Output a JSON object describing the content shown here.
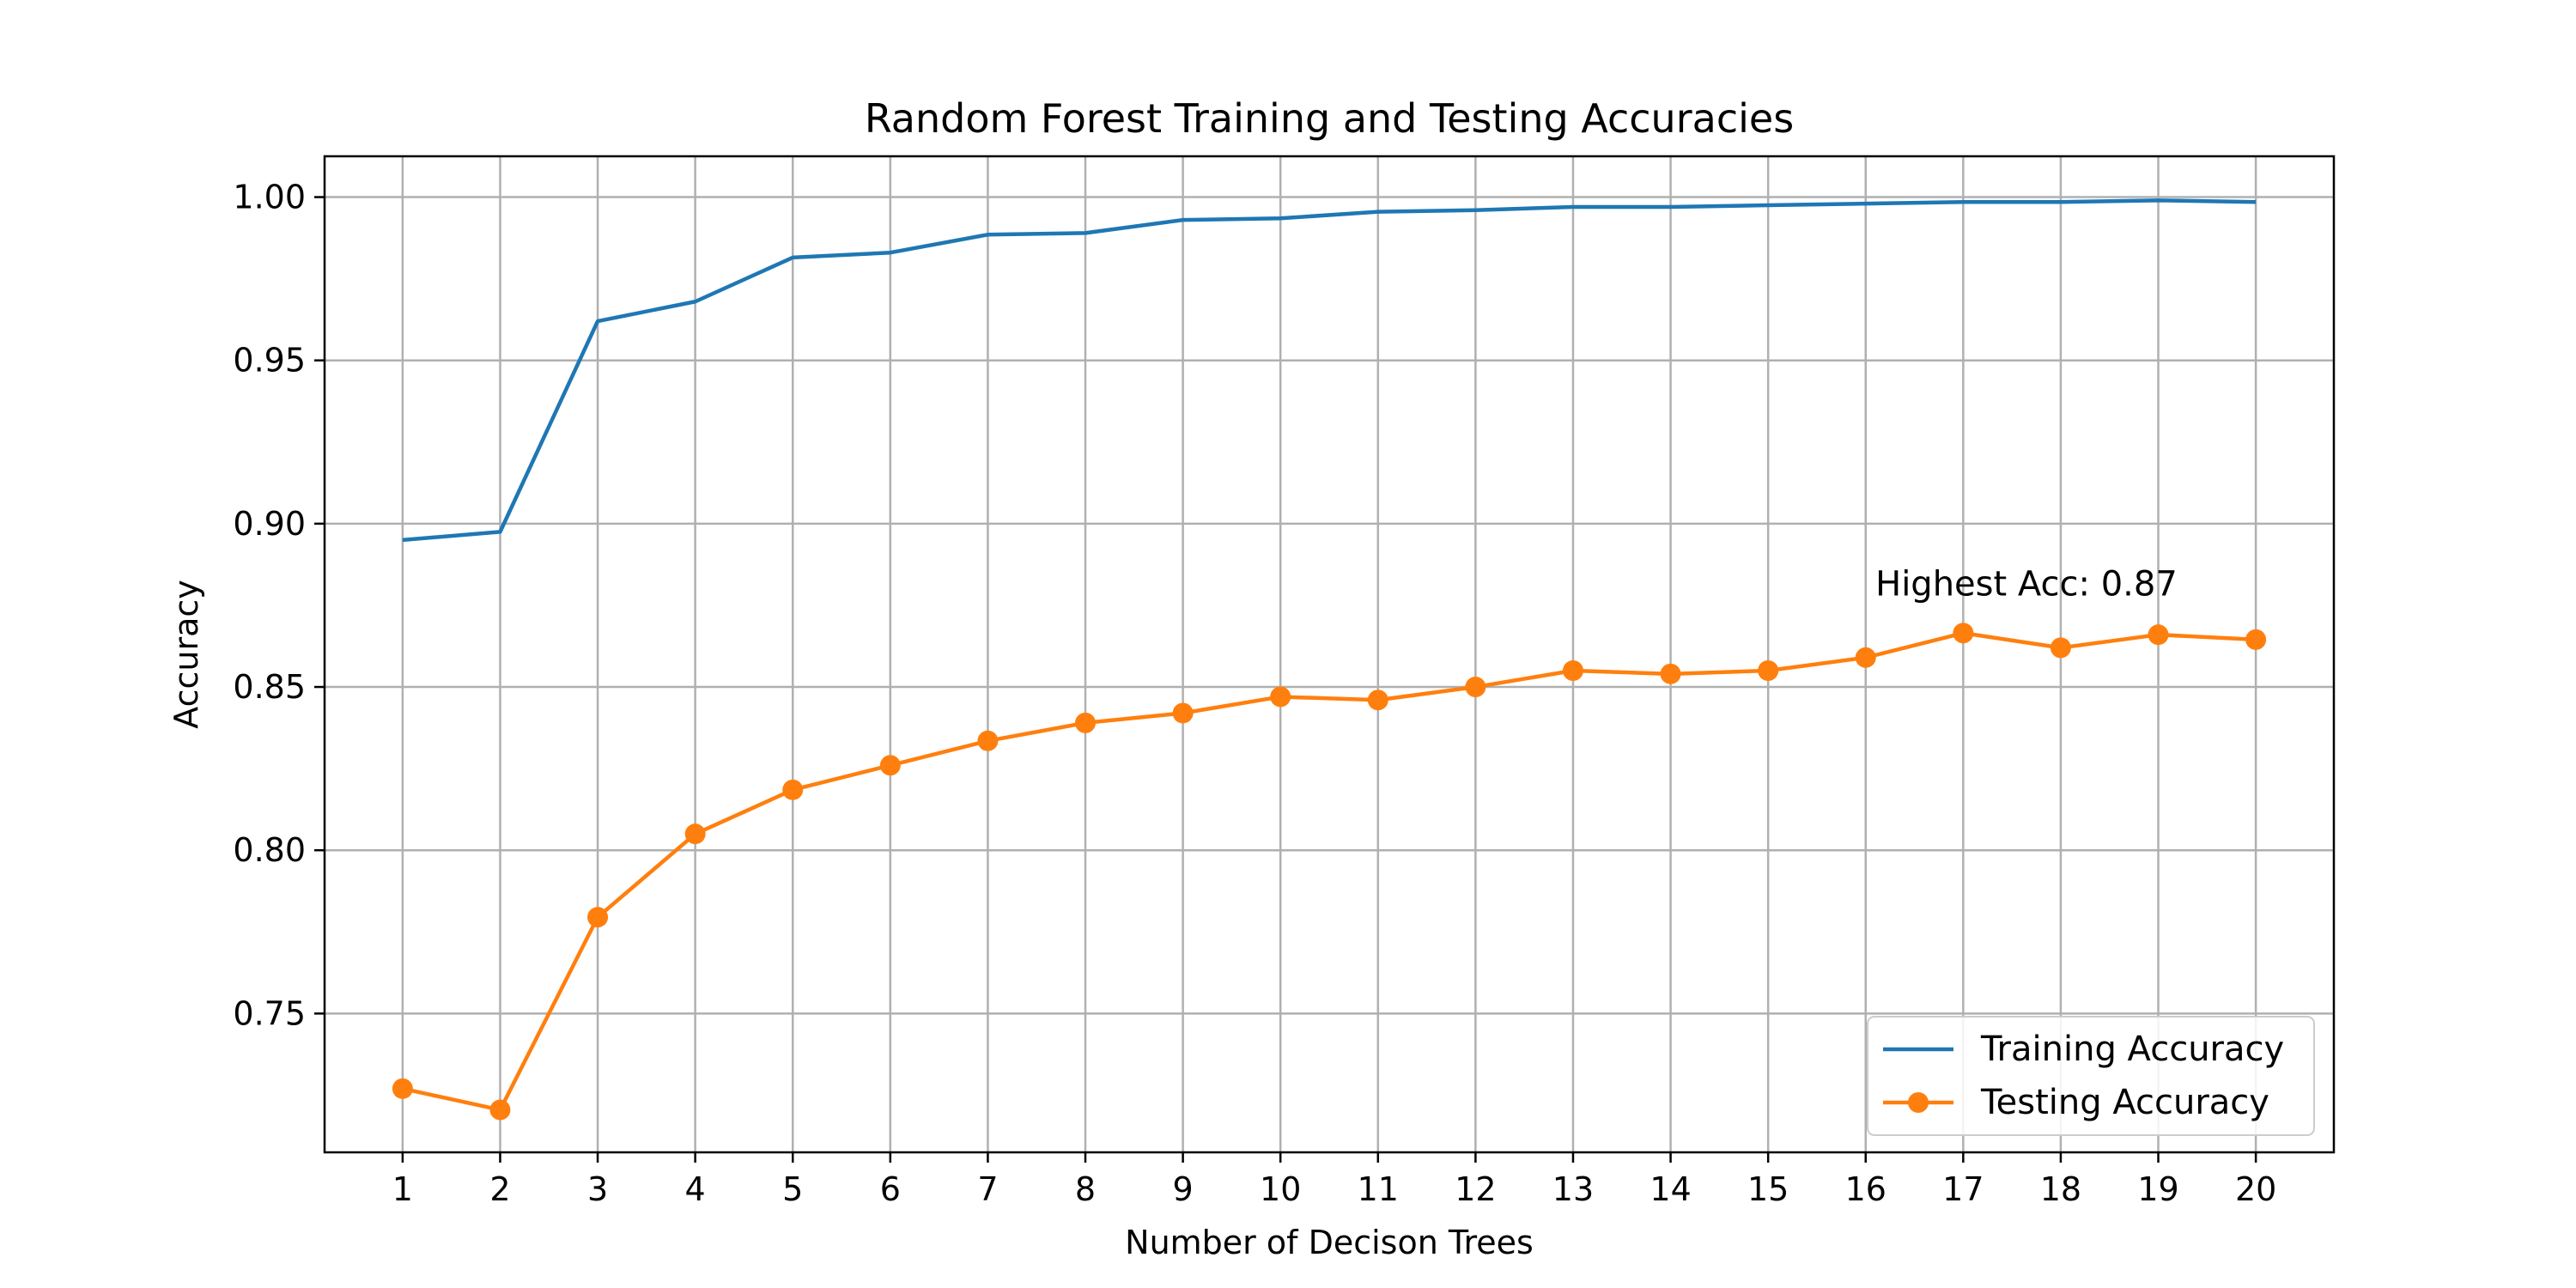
{
  "chart_data": {
    "type": "line",
    "title": "Random Forest Training and Testing Accuracies",
    "xlabel": "Number of Decison Trees",
    "ylabel": "Accuracy",
    "x": [
      1,
      2,
      3,
      4,
      5,
      6,
      7,
      8,
      9,
      10,
      11,
      12,
      13,
      14,
      15,
      16,
      17,
      18,
      19,
      20
    ],
    "xlim": [
      0.2,
      20.8
    ],
    "ylim": [
      0.7075,
      1.0125
    ],
    "yticks": [
      "0.75",
      "0.80",
      "0.85",
      "0.90",
      "0.95",
      "1.00"
    ],
    "grid": true,
    "legend_position": "lower-right",
    "series": [
      {
        "name": "Training Accuracy",
        "color": "#1f77b4",
        "marker": "none",
        "values": [
          0.895,
          0.8975,
          0.962,
          0.968,
          0.9815,
          0.983,
          0.9885,
          0.989,
          0.993,
          0.9935,
          0.9955,
          0.996,
          0.997,
          0.997,
          0.9975,
          0.998,
          0.9985,
          0.9985,
          0.999,
          0.9985
        ]
      },
      {
        "name": "Testing Accuracy",
        "color": "#ff7f0e",
        "marker": "circle",
        "values": [
          0.727,
          0.7205,
          0.7795,
          0.805,
          0.8185,
          0.826,
          0.8335,
          0.839,
          0.842,
          0.847,
          0.846,
          0.85,
          0.855,
          0.854,
          0.855,
          0.859,
          0.8665,
          0.862,
          0.866,
          0.8645
        ]
      }
    ],
    "annotations": [
      {
        "text": "Highest Acc: 0.87",
        "x": 16.1,
        "y": 0.878
      }
    ]
  }
}
